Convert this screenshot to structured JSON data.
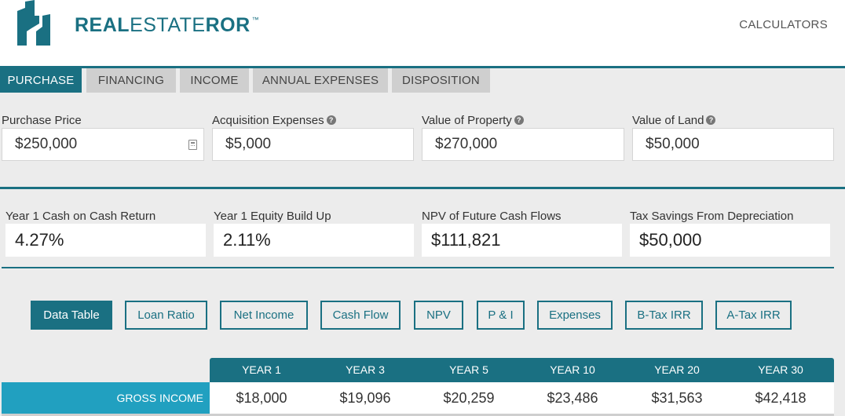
{
  "brand": {
    "name_bold_1": "REAL",
    "name_thin": "ESTATE",
    "name_bold_2": "ROR",
    "trademark": "™",
    "color": "#1a7082"
  },
  "nav": {
    "calculators": "CALCULATORS"
  },
  "tabs": [
    {
      "label": "PURCHASE",
      "active": true
    },
    {
      "label": "FINANCING",
      "active": false
    },
    {
      "label": "INCOME",
      "active": false
    },
    {
      "label": "ANNUAL EXPENSES",
      "active": false
    },
    {
      "label": "DISPOSITION",
      "active": false
    }
  ],
  "purchase": {
    "purchase_price": {
      "label": "Purchase Price",
      "value": "$250,000"
    },
    "acquisition_expenses": {
      "label": "Acquisition Expenses",
      "value": "$5,000",
      "help": "?"
    },
    "value_of_property": {
      "label": "Value of Property",
      "value": "$270,000",
      "help": "?"
    },
    "value_of_land": {
      "label": "Value of Land",
      "value": "$50,000",
      "help": "?"
    }
  },
  "results": {
    "cash_on_cash": {
      "label": "Year 1 Cash on Cash Return",
      "value": "4.27%"
    },
    "equity_build_up": {
      "label": "Year 1 Equity Build Up",
      "value": "2.11%"
    },
    "npv": {
      "label": "NPV of Future Cash Flows",
      "value": "$111,821"
    },
    "tax_savings": {
      "label": "Tax Savings From Depreciation",
      "value": "$50,000"
    }
  },
  "view_buttons": [
    {
      "label": "Data Table",
      "active": true
    },
    {
      "label": "Loan Ratio",
      "active": false
    },
    {
      "label": "Net Income",
      "active": false
    },
    {
      "label": "Cash Flow",
      "active": false
    },
    {
      "label": "NPV",
      "active": false
    },
    {
      "label": "P & I",
      "active": false
    },
    {
      "label": "Expenses",
      "active": false
    },
    {
      "label": "B-Tax IRR",
      "active": false
    },
    {
      "label": "A-Tax IRR",
      "active": false
    }
  ],
  "table": {
    "years": [
      "YEAR 1",
      "YEAR 3",
      "YEAR 5",
      "YEAR 10",
      "YEAR 20",
      "YEAR 30"
    ],
    "rows": [
      {
        "label": "GROSS INCOME",
        "values": [
          "$18,000",
          "$19,096",
          "$20,259",
          "$23,486",
          "$31,563",
          "$42,418"
        ]
      }
    ]
  }
}
